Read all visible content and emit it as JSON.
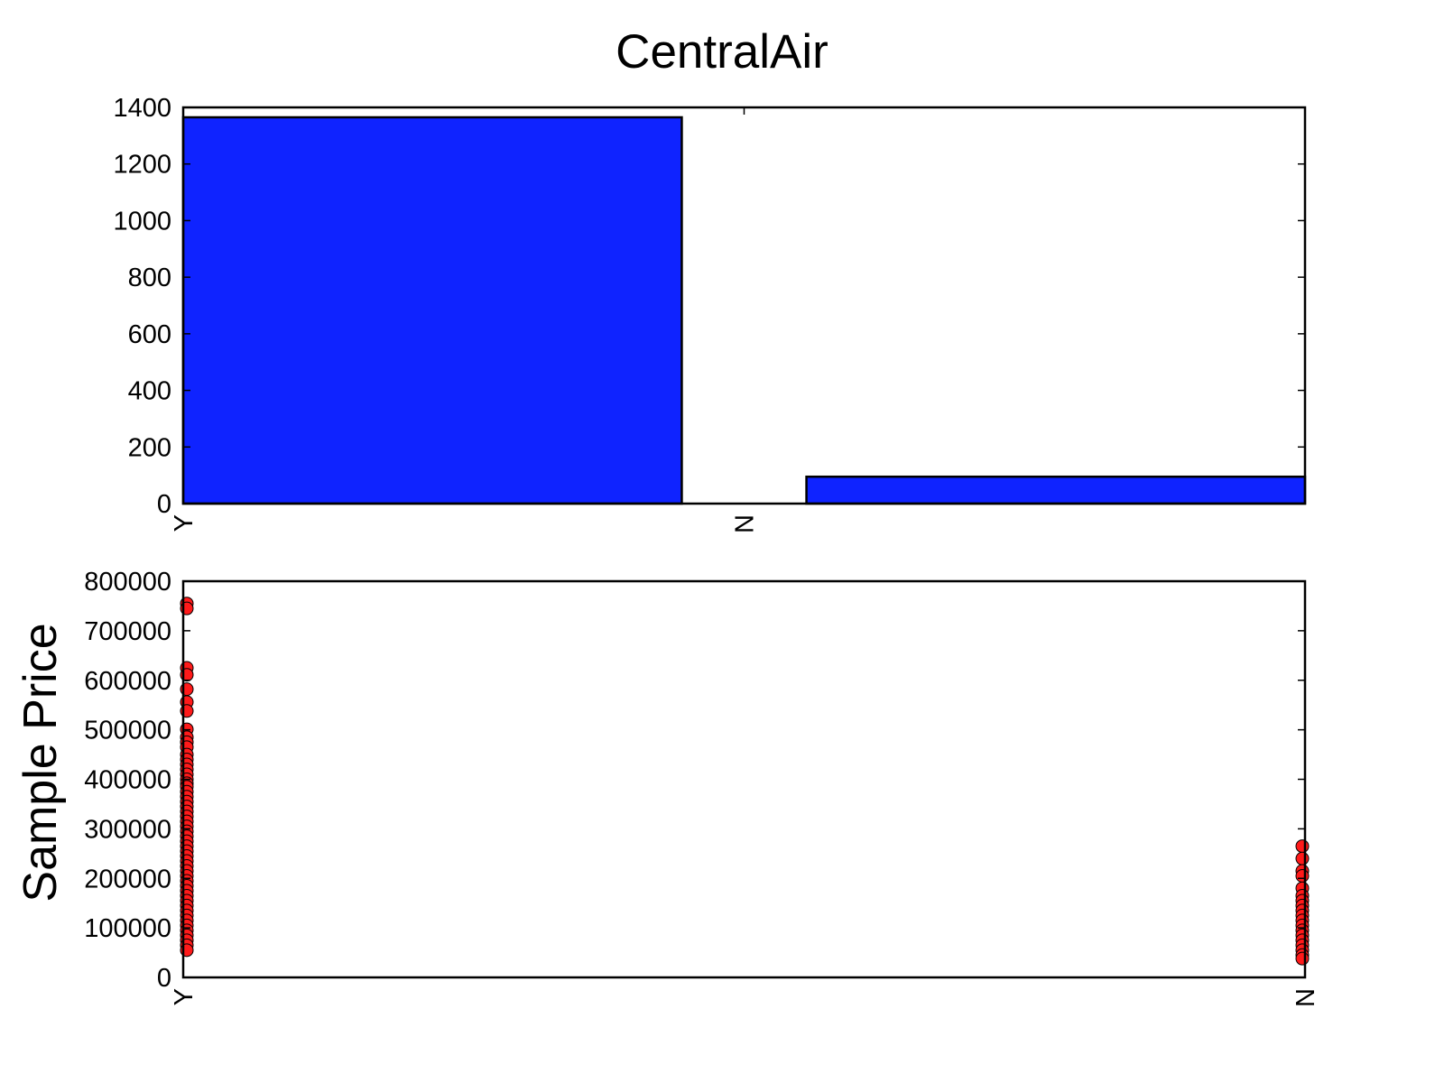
{
  "title": "CentralAir",
  "chart_data": [
    {
      "type": "bar",
      "categories": [
        "Y",
        "N"
      ],
      "values": [
        1365,
        95
      ],
      "yticks": [
        "0",
        "200",
        "400",
        "600",
        "800",
        "1000",
        "1200",
        "1400"
      ],
      "ylim": [
        0,
        1400
      ],
      "bar_color": "#0f23ff",
      "grid": false
    },
    {
      "type": "scatter",
      "ylabel": "Sample Price",
      "categories": [
        "Y",
        "N"
      ],
      "yticks": [
        "0",
        "100000",
        "200000",
        "300000",
        "400000",
        "500000",
        "600000",
        "700000",
        "800000"
      ],
      "ylim": [
        0,
        800000
      ],
      "marker_color": "#ff1a1a",
      "grid": false,
      "series": [
        {
          "x": "Y",
          "values": [
            755000,
            745000,
            625000,
            611000,
            582000,
            556000,
            538000,
            501000,
            485000,
            475000,
            465000,
            450000,
            440000,
            430000,
            420000,
            410000,
            400000,
            392000,
            385000,
            375000,
            365000,
            355000,
            345000,
            335000,
            325000,
            315000,
            305000,
            295000,
            285000,
            275000,
            265000,
            255000,
            245000,
            235000,
            225000,
            215000,
            205000,
            195000,
            185000,
            175000,
            165000,
            155000,
            145000,
            135000,
            125000,
            115000,
            105000,
            95000,
            85000,
            75000,
            65000,
            55000
          ]
        },
        {
          "x": "N",
          "values": [
            265000,
            240000,
            215000,
            205000,
            180000,
            165000,
            155000,
            145000,
            135000,
            125000,
            115000,
            105000,
            95000,
            85000,
            75000,
            65000,
            55000,
            45000,
            38000
          ]
        }
      ]
    }
  ]
}
